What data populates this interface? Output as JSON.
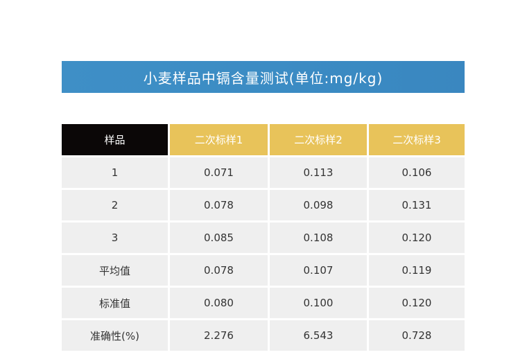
{
  "title": "小麦样品中镉含量测试(单位:mg/kg)",
  "colors": {
    "banner": "#3b8cc4",
    "header_first": "#0b0707",
    "header": "#e8c35a",
    "cell": "#efefef"
  },
  "table": {
    "headers": [
      "样品",
      "二次标样1",
      "二次标样2",
      "二次标样3"
    ],
    "rows": [
      [
        "1",
        "0.071",
        "0.113",
        "0.106"
      ],
      [
        "2",
        "0.078",
        "0.098",
        "0.131"
      ],
      [
        "3",
        "0.085",
        "0.108",
        "0.120"
      ],
      [
        "平均值",
        "0.078",
        "0.107",
        "0.119"
      ],
      [
        "标准值",
        "0.080",
        "0.100",
        "0.120"
      ],
      [
        "准确性(%)",
        "2.276",
        "6.543",
        "0.728"
      ]
    ]
  }
}
